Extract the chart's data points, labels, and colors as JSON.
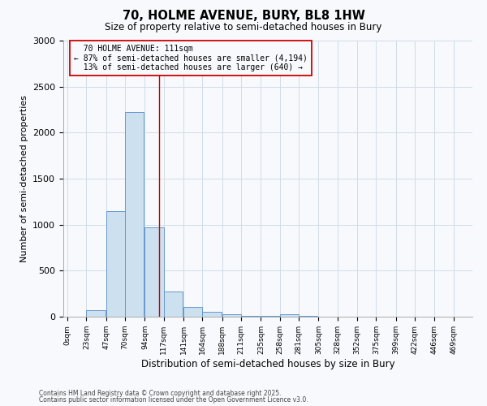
{
  "title": "70, HOLME AVENUE, BURY, BL8 1HW",
  "subtitle": "Size of property relative to semi-detached houses in Bury",
  "xlabel": "Distribution of semi-detached houses by size in Bury",
  "ylabel": "Number of semi-detached properties",
  "property_label": "70 HOLME AVENUE: 111sqm",
  "pct_smaller": 87,
  "pct_larger": 13,
  "n_smaller": 4194,
  "n_larger": 640,
  "bar_left_edges": [
    0,
    23,
    47,
    70,
    94,
    117,
    141,
    164,
    188,
    211,
    235,
    258,
    281,
    305,
    328,
    352,
    375,
    399,
    422,
    446
  ],
  "bar_heights": [
    0,
    75,
    1150,
    2225,
    975,
    270,
    110,
    55,
    30,
    8,
    5,
    25,
    5,
    0,
    0,
    0,
    0,
    0,
    0,
    0
  ],
  "bin_width": 23,
  "bar_color": "#cce0f0",
  "bar_edgecolor": "#6699cc",
  "vline_color": "#cc0000",
  "vline_x": 111,
  "box_color": "#cc0000",
  "ylim": [
    0,
    3000
  ],
  "yticks": [
    0,
    500,
    1000,
    1500,
    2000,
    2500,
    3000
  ],
  "xtick_labels": [
    "0sqm",
    "23sqm",
    "47sqm",
    "70sqm",
    "94sqm",
    "117sqm",
    "141sqm",
    "164sqm",
    "188sqm",
    "211sqm",
    "235sqm",
    "258sqm",
    "281sqm",
    "305sqm",
    "328sqm",
    "352sqm",
    "375sqm",
    "399sqm",
    "422sqm",
    "446sqm",
    "469sqm"
  ],
  "xtick_positions": [
    0,
    23,
    47,
    70,
    94,
    117,
    141,
    164,
    188,
    211,
    235,
    258,
    281,
    305,
    328,
    352,
    375,
    399,
    422,
    446,
    469
  ],
  "grid_color": "#d0dde8",
  "footnote1": "Contains HM Land Registry data © Crown copyright and database right 2025.",
  "footnote2": "Contains public sector information licensed under the Open Government Licence v3.0.",
  "bg_color": "#f7f9fc"
}
